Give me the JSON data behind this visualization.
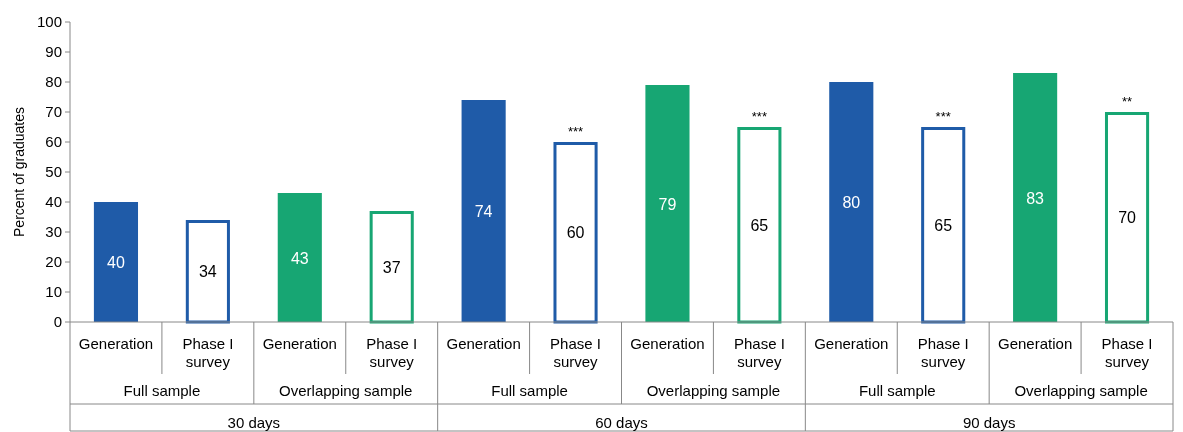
{
  "chart_data": {
    "type": "bar",
    "ylabel": "Percent of graduates",
    "categories": [
      "Generation",
      "Phase I survey",
      "Generation",
      "Phase I survey",
      "Generation",
      "Phase I survey",
      "Generation",
      "Phase I survey",
      "Generation",
      "Phase I survey",
      "Generation",
      "Phase I survey"
    ],
    "values": [
      40,
      34,
      43,
      37,
      74,
      60,
      79,
      65,
      80,
      65,
      83,
      70
    ],
    "colors": [
      "#1f5ba8",
      "#1f5ba8",
      "#17a673",
      "#17a673",
      "#1f5ba8",
      "#1f5ba8",
      "#17a673",
      "#17a673",
      "#1f5ba8",
      "#1f5ba8",
      "#17a673",
      "#17a673"
    ],
    "data_labels": true,
    "ylim": [
      0,
      100
    ],
    "yticks": [
      0,
      10,
      20,
      30,
      40,
      50,
      60,
      70,
      80,
      90,
      100
    ],
    "grid": false,
    "annotations": [
      "Full sample",
      "Overlapping sample",
      "Full sample",
      "Overlapping sample",
      "Full sample",
      "Overlapping sample",
      "30 days",
      "60 days",
      "90 days",
      "***",
      "***",
      "***",
      "**"
    ]
  }
}
